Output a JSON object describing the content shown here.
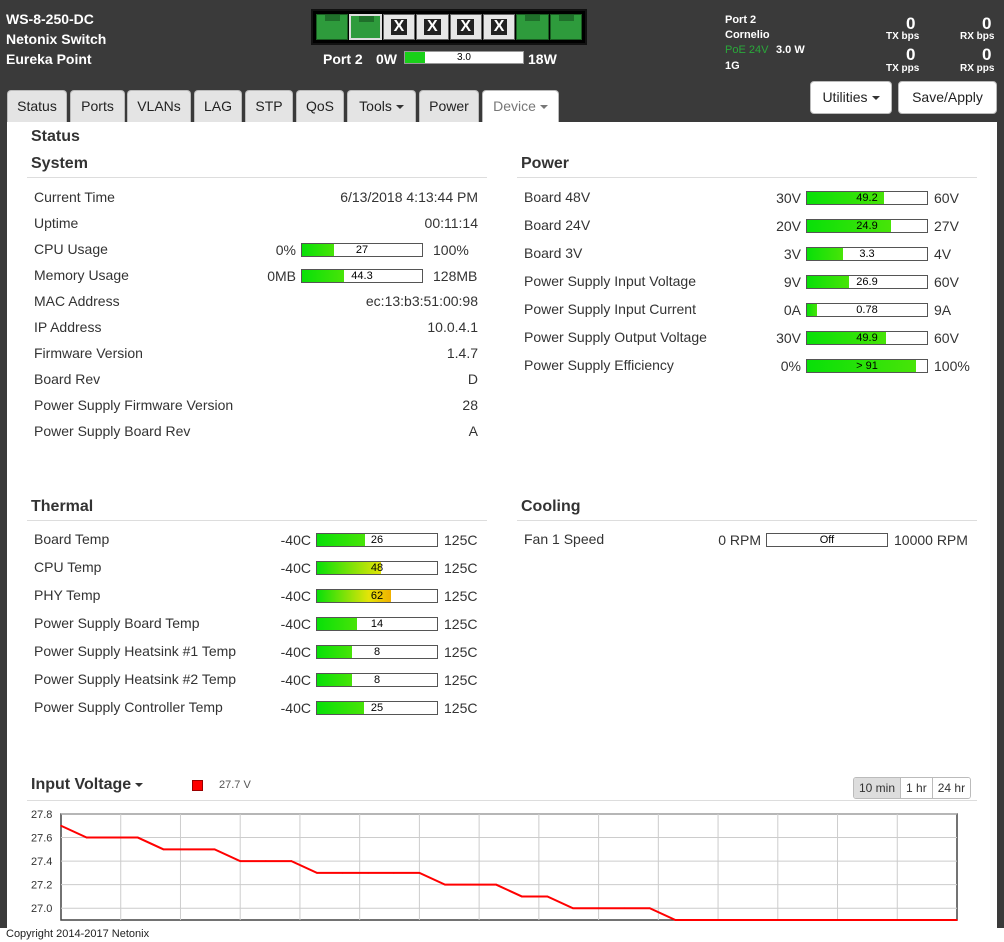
{
  "device": {
    "name": "WS-8-250-DC",
    "model": "Netonix Switch",
    "location": "Eureka Point"
  },
  "ports": [
    {
      "state": "active"
    },
    {
      "state": "active-selected"
    },
    {
      "state": "off",
      "label": "X"
    },
    {
      "state": "off",
      "label": "X"
    },
    {
      "state": "off",
      "label": "X"
    },
    {
      "state": "off",
      "label": "X"
    },
    {
      "state": "active"
    },
    {
      "state": "active"
    }
  ],
  "port_summary": {
    "label": "Port 2",
    "poe_min": "0W",
    "poe_max": "18W",
    "poe_value": "3.0",
    "poe_fraction": 0.167
  },
  "port_info": {
    "port": "Port 2",
    "name": "Cornelio",
    "poe": "PoE 24V",
    "watts": "3.0 W",
    "speed": "1G"
  },
  "traffic": {
    "tx_bps": "0",
    "tx_bps_label": "TX bps",
    "rx_bps": "0",
    "rx_bps_label": "RX bps",
    "tx_pps": "0",
    "tx_pps_label": "TX pps",
    "rx_pps": "0",
    "rx_pps_label": "RX pps"
  },
  "tabs": [
    "Status",
    "Ports",
    "VLANs",
    "LAG",
    "STP",
    "QoS",
    "Tools",
    "Power",
    "Device"
  ],
  "buttons": {
    "utilities": "Utilities",
    "save": "Save/Apply"
  },
  "page_title": "Status",
  "system": {
    "title": "System",
    "rows": [
      {
        "label": "Current Time",
        "value": "6/13/2018 4:13:44 PM"
      },
      {
        "label": "Uptime",
        "value": "00:11:14"
      },
      {
        "label": "CPU Usage",
        "min": "0%",
        "max": "100%",
        "meter": "27",
        "fraction": 0.27
      },
      {
        "label": "Memory Usage",
        "min": "0MB",
        "max": "128MB",
        "meter": "44.3",
        "fraction": 0.346
      },
      {
        "label": "MAC Address",
        "value": "ec:13:b3:51:00:98"
      },
      {
        "label": "IP Address",
        "value": "10.0.4.1"
      },
      {
        "label": "Firmware Version",
        "value": "1.4.7"
      },
      {
        "label": "Board Rev",
        "value": "D"
      },
      {
        "label": "Power Supply Firmware Version",
        "value": "28"
      },
      {
        "label": "Power Supply Board Rev",
        "value": "A"
      }
    ]
  },
  "power": {
    "title": "Power",
    "rows": [
      {
        "label": "Board 48V",
        "min": "30V",
        "max": "60V",
        "meter": "49.2",
        "fraction": 0.64
      },
      {
        "label": "Board 24V",
        "min": "20V",
        "max": "27V",
        "meter": "24.9",
        "fraction": 0.7
      },
      {
        "label": "Board 3V",
        "min": "3V",
        "max": "4V",
        "meter": "3.3",
        "fraction": 0.3
      },
      {
        "label": "Power Supply Input Voltage",
        "min": "9V",
        "max": "60V",
        "meter": "26.9",
        "fraction": 0.35
      },
      {
        "label": "Power Supply Input Current",
        "min": "0A",
        "max": "9A",
        "meter": "0.78",
        "fraction": 0.087
      },
      {
        "label": "Power Supply Output Voltage",
        "min": "30V",
        "max": "60V",
        "meter": "49.9",
        "fraction": 0.66
      },
      {
        "label": "Power Supply Efficiency",
        "min": "0%",
        "max": "100%",
        "meter": "> 91",
        "fraction": 0.91
      }
    ]
  },
  "thermal": {
    "title": "Thermal",
    "rows": [
      {
        "label": "Board Temp",
        "min": "-40C",
        "max": "125C",
        "meter": "26",
        "fraction": 0.4
      },
      {
        "label": "CPU Temp",
        "min": "-40C",
        "max": "125C",
        "meter": "48",
        "fraction": 0.53
      },
      {
        "label": "PHY Temp",
        "min": "-40C",
        "max": "125C",
        "meter": "62",
        "fraction": 0.62
      },
      {
        "label": "Power Supply Board Temp",
        "min": "-40C",
        "max": "125C",
        "meter": "14",
        "fraction": 0.33
      },
      {
        "label": "Power Supply Heatsink #1 Temp",
        "min": "-40C",
        "max": "125C",
        "meter": "8",
        "fraction": 0.29
      },
      {
        "label": "Power Supply Heatsink #2 Temp",
        "min": "-40C",
        "max": "125C",
        "meter": "8",
        "fraction": 0.29
      },
      {
        "label": "Power Supply Controller Temp",
        "min": "-40C",
        "max": "125C",
        "meter": "25",
        "fraction": 0.39
      }
    ]
  },
  "cooling": {
    "title": "Cooling",
    "rows": [
      {
        "label": "Fan 1 Speed",
        "min": "0 RPM",
        "max": "10000 RPM",
        "meter": "Off",
        "fraction": 0
      }
    ]
  },
  "graph": {
    "title": "Input Voltage",
    "legend_value": "27.7 V",
    "legend_color": "#ff0000",
    "ranges": [
      "10 min",
      "1 hr",
      "24 hr"
    ],
    "selected_range": "10 min"
  },
  "chart_data": {
    "type": "line",
    "title": "Input Voltage",
    "ylim": [
      26.9,
      27.8
    ],
    "y_ticks": [
      "27.8",
      "27.6",
      "27.4",
      "27.2",
      "27.0"
    ],
    "series": [
      {
        "name": "27.7 V",
        "color": "#ff0000",
        "values": [
          27.7,
          27.6,
          27.6,
          27.6,
          27.5,
          27.5,
          27.5,
          27.4,
          27.4,
          27.4,
          27.3,
          27.3,
          27.3,
          27.3,
          27.3,
          27.2,
          27.2,
          27.2,
          27.1,
          27.1,
          27.0,
          27.0,
          27.0,
          27.0,
          26.9,
          26.9,
          26.9,
          26.9,
          26.9,
          26.9,
          26.9,
          26.9,
          26.9,
          26.9,
          26.9,
          26.9
        ]
      }
    ]
  },
  "footer": {
    "copyright": "Copyright 2014-2017 Netonix"
  }
}
